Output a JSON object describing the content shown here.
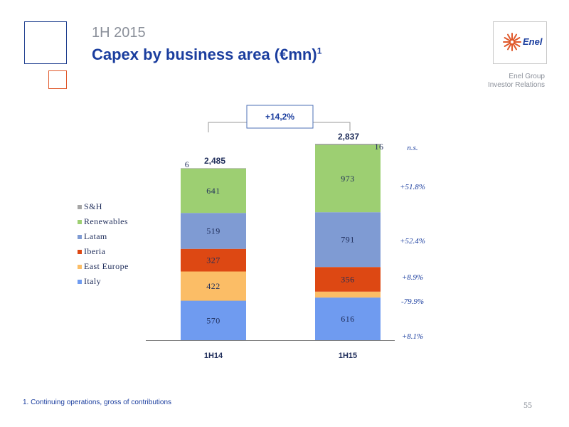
{
  "header": {
    "period": "1H 2015",
    "title": "Capex by business area (€mn)",
    "title_sup": "1"
  },
  "logo": {
    "text": "Enel",
    "color": "#1a3d9e",
    "flower_color": "#e0582a"
  },
  "company": {
    "line1": "Enel Group",
    "line2": "Investor Relations"
  },
  "footnote": "1. Continuing operations, gross of contributions",
  "page_number": "55",
  "chart_data": {
    "type": "bar",
    "stacked": true,
    "categories": [
      "1H14",
      "1H15"
    ],
    "totals": [
      "2,485",
      "2,837"
    ],
    "growth_total": "+14,2%",
    "series": [
      {
        "name": "Italy",
        "values": [
          570,
          616
        ],
        "color": "#6f9bf0",
        "change": "+8.1%"
      },
      {
        "name": "East Europe",
        "values": [
          422,
          85
        ],
        "color": "#fbbd66",
        "change": "-79.9%"
      },
      {
        "name": "Iberia",
        "values": [
          327,
          356
        ],
        "color": "#dd4813",
        "change": "+8.9%"
      },
      {
        "name": "Latam",
        "values": [
          519,
          791
        ],
        "color": "#7f9bd3",
        "change": "+52.4%"
      },
      {
        "name": "Renewables",
        "values": [
          641,
          973
        ],
        "color": "#9dcf72",
        "change": "+51.8%"
      },
      {
        "name": "S&H",
        "values": [
          6,
          16
        ],
        "color": "#a6a6a6",
        "change": "n.s."
      }
    ],
    "legend_position": "left",
    "grid": false,
    "accent_color": "#1a3d9e"
  }
}
